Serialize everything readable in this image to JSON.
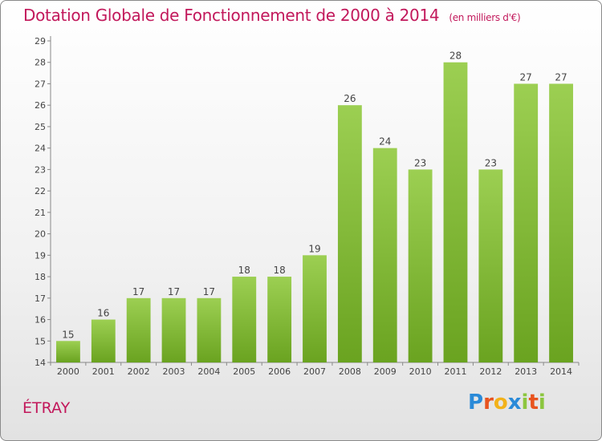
{
  "chart_data": {
    "type": "bar",
    "title": "Dotation Globale de Fonctionnement de 2000 à 2014",
    "subtitle": "(en milliers d'€)",
    "categories": [
      "2000",
      "2001",
      "2002",
      "2003",
      "2004",
      "2005",
      "2006",
      "2007",
      "2008",
      "2009",
      "2010",
      "2011",
      "2012",
      "2013",
      "2014"
    ],
    "values": [
      15,
      16,
      17,
      17,
      17,
      18,
      18,
      19,
      26,
      24,
      23,
      28,
      23,
      27,
      27
    ],
    "ylim": [
      14,
      29
    ],
    "yticks": [
      14,
      15,
      16,
      17,
      18,
      19,
      20,
      21,
      22,
      23,
      24,
      25,
      26,
      27,
      28,
      29
    ],
    "grid": false,
    "bar_color_top": "#9ccf52",
    "bar_color_bottom": "#6aa320"
  },
  "commune": "ÉTRAY",
  "logo": {
    "p": "P",
    "r": "r",
    "o": "o",
    "x": "x",
    "i": "i",
    "t": "t",
    "i2": "i"
  }
}
